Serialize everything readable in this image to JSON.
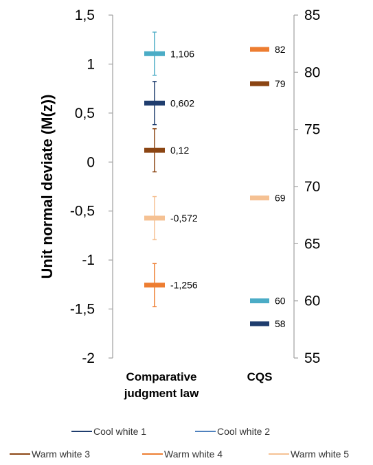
{
  "chart_data": {
    "type": "scatter",
    "ylabel": "Unit normal deviate (M(z))",
    "categories": [
      "Comparative judgment law",
      "CQS"
    ],
    "category_lines": [
      [
        "Comparative",
        "judgment law"
      ],
      [
        "CQS"
      ]
    ],
    "left_axis": {
      "range": [
        -2,
        1.5
      ],
      "ticks": [
        -2,
        -1.5,
        -1,
        -0.5,
        0,
        0.5,
        1,
        1.5
      ],
      "tick_labels": [
        "-2",
        "-1,5",
        "-1",
        "-0,5",
        "0",
        "0,5",
        "1",
        "1,5"
      ]
    },
    "right_axis": {
      "range": [
        55,
        85
      ],
      "ticks": [
        55,
        60,
        65,
        70,
        75,
        80,
        85
      ],
      "tick_labels": [
        "55",
        "60",
        "65",
        "70",
        "75",
        "80",
        "85"
      ]
    },
    "series": [
      {
        "name": "Cool white 1",
        "color": "#1f3d6e",
        "cjl_value": 0.602,
        "cjl_label": "0,602",
        "cjl_error": 0.22,
        "cqs_value": 58,
        "cqs_label": "58"
      },
      {
        "name": "Cool white 2",
        "color": "#4bacc6",
        "cjl_value": 1.106,
        "cjl_label": "1,106",
        "cjl_error": 0.22,
        "cqs_value": 60,
        "cqs_label": "60"
      },
      {
        "name": "Warm white 3",
        "color": "#8b4513",
        "cjl_value": 0.12,
        "cjl_label": "0,12",
        "cjl_error": 0.22,
        "cqs_value": 79,
        "cqs_label": "79"
      },
      {
        "name": "Warm white 4",
        "color": "#ed7d31",
        "cjl_value": -1.256,
        "cjl_label": "-1,256",
        "cjl_error": 0.22,
        "cqs_value": 82,
        "cqs_label": "82"
      },
      {
        "name": "Warm white 5",
        "color": "#f5c193",
        "cjl_value": -0.572,
        "cjl_label": "-0,572",
        "cjl_error": 0.22,
        "cqs_value": 69,
        "cqs_label": "69"
      }
    ],
    "legend_position": "bottom"
  },
  "legend_icon_colors": {
    "cool1": "#1f3d6e",
    "cool2": "#4f81bd"
  }
}
